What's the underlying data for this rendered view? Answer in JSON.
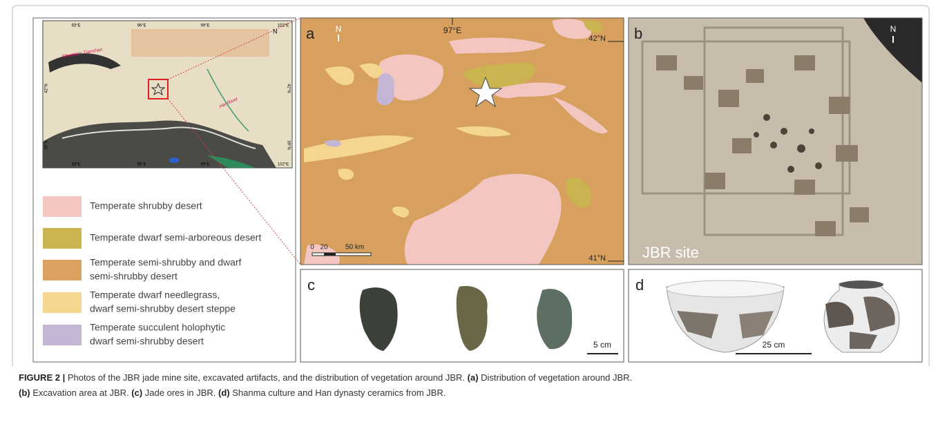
{
  "inset_map": {
    "lon_top": [
      "93°E",
      "96°E",
      "99°E",
      "102°E"
    ],
    "lon_bottom": [
      "93°E",
      "96°E",
      "99°E",
      "102°E"
    ],
    "lat_left": [
      "42°N",
      "39°N"
    ],
    "lat_right": [
      "42°N",
      "39°N"
    ],
    "places": [
      "Mountain Tianshan",
      "Hei River"
    ]
  },
  "legend": [
    {
      "lines": [
        "Temperate shrubby desert"
      ],
      "color": "#f4c6c2"
    },
    {
      "lines": [
        "Temperate dwarf semi-arboreous desert"
      ],
      "color": "#c9b450"
    },
    {
      "lines": [
        "Temperate semi-shrubby and dwarf",
        "semi-shrubby desert"
      ],
      "color": "#d9a35f"
    },
    {
      "lines": [
        "Temperate dwarf needlegrass,",
        "dwarf semi-shrubby desert steppe"
      ],
      "color": "#f4d68e"
    },
    {
      "lines": [
        "Temperate succulent holophytic",
        "dwarf semi-shrubby desert"
      ],
      "color": "#c4b5d4"
    }
  ],
  "panel_a": {
    "label": "a",
    "north": "N",
    "lon": "97°E",
    "lat_top": "42°N",
    "lat_bottom": "41°N",
    "scale": [
      "0",
      "20",
      "50 km"
    ]
  },
  "panel_b": {
    "label": "b",
    "north": "N",
    "site": "JBR site"
  },
  "panel_c": {
    "label": "c",
    "scale": "5 cm"
  },
  "panel_d": {
    "label": "d",
    "scale": "25 cm"
  },
  "caption": {
    "figure": "FIGURE 2 |",
    "intro": " Photos of the JBR jade mine site, excavated artifacts, and the distribution of vegetation around JBR. ",
    "parts": [
      {
        "tag": "(a)",
        "text": " Distribution of vegetation around JBR."
      },
      {
        "tag": "(b)",
        "text": " Excavation area at JBR. "
      },
      {
        "tag": "(c)",
        "text": " Jade ores in JBR. "
      },
      {
        "tag": "(d)",
        "text": " Shanma culture and Han dynasty ceramics from JBR."
      }
    ]
  }
}
